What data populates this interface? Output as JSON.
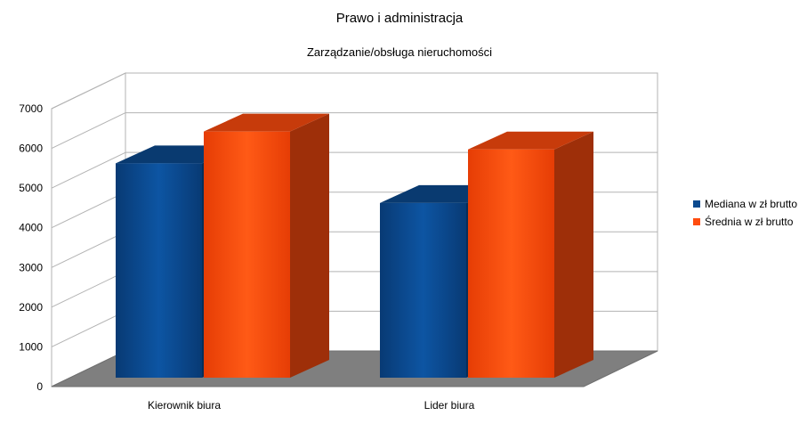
{
  "chart_data": {
    "type": "bar",
    "title": "Prawo i administracja",
    "subtitle": "Zarządzanie/obsługa nieruchomości",
    "xlabel": "",
    "ylabel": "",
    "categories": [
      "Kierownik biura",
      "Lider biura"
    ],
    "series": [
      {
        "name": "Mediana w zł brutto",
        "values": [
          5400,
          4400
        ],
        "color": "#0b4a8f"
      },
      {
        "name": "Średnia w zł brutto",
        "values": [
          6200,
          5750
        ],
        "color": "#ff4c0e"
      }
    ],
    "ylim": [
      0,
      7000
    ],
    "yticks": [
      "0",
      "1000",
      "2000",
      "3000",
      "4000",
      "5000",
      "6000",
      "7000"
    ],
    "grid": true,
    "legend_position": "right",
    "style": "3d"
  }
}
